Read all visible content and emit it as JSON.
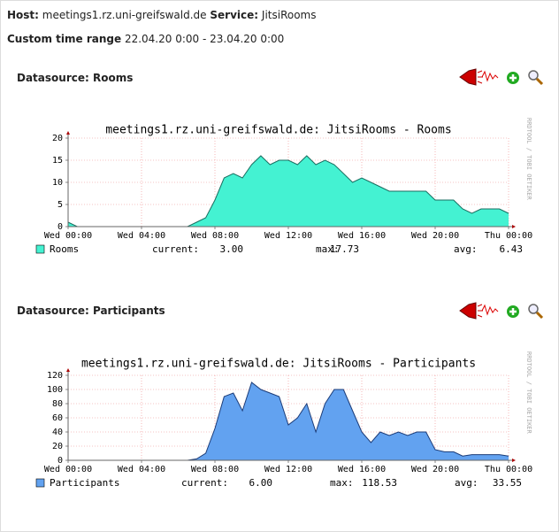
{
  "header": {
    "host_label": "Host:",
    "host": "meetings1.rz.uni-greifswald.de",
    "service_label": "Service:",
    "service": "JitsiRooms",
    "range_label": "Custom time range",
    "range": "22.04.20 0:00 - 23.04.20 0:00"
  },
  "panels": [
    {
      "label": "Datasource:",
      "name": "Rooms"
    },
    {
      "label": "Datasource:",
      "name": "Participants"
    }
  ],
  "chart_data": [
    {
      "type": "area",
      "title": "meetings1.rz.uni-greifswald.de: JitsiRooms - Rooms",
      "watermark": "RRDTOOL / TOBI OETIKER",
      "x": [
        0,
        0.5,
        1,
        1.5,
        2,
        2.5,
        3,
        3.5,
        4,
        4.5,
        5,
        5.5,
        6,
        6.5,
        7,
        7.5,
        8,
        8.5,
        9,
        9.5,
        10,
        10.5,
        11,
        11.5,
        12,
        12.5,
        13,
        13.5,
        14,
        14.5,
        15,
        15.5,
        16,
        16.5,
        17,
        17.5,
        18,
        18.5,
        19,
        19.5,
        20,
        20.5,
        21,
        21.5,
        22,
        22.5,
        23,
        23.5,
        24
      ],
      "series": [
        {
          "name": "Rooms",
          "color": "#44f2d2",
          "line_color": "#1a6e60",
          "values": [
            1,
            0,
            0,
            0,
            0,
            0,
            0,
            0,
            0,
            0,
            0,
            0,
            0,
            0,
            1,
            2,
            6,
            11,
            12,
            11,
            14,
            16,
            14,
            15,
            15,
            14,
            16,
            14,
            15,
            14,
            12,
            10,
            11,
            10,
            9,
            8,
            8,
            8,
            8,
            8,
            6,
            6,
            6,
            4,
            3,
            4,
            4,
            4,
            3
          ],
          "stats": [
            {
              "label": "current:",
              "value": 3,
              "value_label": "3.00"
            },
            {
              "label": "max:",
              "value": 17.73,
              "value_label": "17.73"
            },
            {
              "label": "avg:",
              "value": 6.43,
              "value_label": "6.43"
            }
          ]
        }
      ],
      "xlim": [
        0,
        24
      ],
      "xticks": [
        {
          "value": 0,
          "label": "Wed 00:00"
        },
        {
          "value": 4,
          "label": "Wed 04:00"
        },
        {
          "value": 8,
          "label": "Wed 08:00"
        },
        {
          "value": 12,
          "label": "Wed 12:00"
        },
        {
          "value": 16,
          "label": "Wed 16:00"
        },
        {
          "value": 20,
          "label": "Wed 20:00"
        },
        {
          "value": 24,
          "label": "Thu 00:00"
        }
      ],
      "ylim": [
        0,
        20
      ],
      "yticks": [
        0,
        5,
        10,
        15,
        20
      ],
      "grid": true
    },
    {
      "type": "area",
      "title": "meetings1.rz.uni-greifswald.de: JitsiRooms - Participants",
      "watermark": "RRDTOOL / TOBI OETIKER",
      "x": [
        0,
        0.5,
        1,
        1.5,
        2,
        2.5,
        3,
        3.5,
        4,
        4.5,
        5,
        5.5,
        6,
        6.5,
        7,
        7.5,
        8,
        8.5,
        9,
        9.5,
        10,
        10.5,
        11,
        11.5,
        12,
        12.5,
        13,
        13.5,
        14,
        14.5,
        15,
        15.5,
        16,
        16.5,
        17,
        17.5,
        18,
        18.5,
        19,
        19.5,
        20,
        20.5,
        21,
        21.5,
        22,
        22.5,
        23,
        23.5,
        24
      ],
      "series": [
        {
          "name": "Participants",
          "color": "#62a2f0",
          "line_color": "#1c3c78",
          "values": [
            0,
            0,
            0,
            0,
            0,
            0,
            0,
            0,
            0,
            0,
            0,
            0,
            0,
            0,
            2,
            10,
            45,
            90,
            95,
            70,
            110,
            100,
            95,
            90,
            50,
            60,
            80,
            40,
            80,
            100,
            100,
            70,
            40,
            25,
            40,
            35,
            40,
            35,
            40,
            40,
            15,
            12,
            12,
            6,
            8,
            8,
            8,
            8,
            6
          ],
          "stats": [
            {
              "label": "current:",
              "value": 6,
              "value_label": "6.00"
            },
            {
              "label": "max:",
              "value": 118.53,
              "value_label": "118.53"
            },
            {
              "label": "avg:",
              "value": 33.55,
              "value_label": "33.55"
            }
          ]
        }
      ],
      "xlim": [
        0,
        24
      ],
      "xticks": [
        {
          "value": 0,
          "label": "Wed 00:00"
        },
        {
          "value": 4,
          "label": "Wed 04:00"
        },
        {
          "value": 8,
          "label": "Wed 08:00"
        },
        {
          "value": 12,
          "label": "Wed 12:00"
        },
        {
          "value": 16,
          "label": "Wed 16:00"
        },
        {
          "value": 20,
          "label": "Wed 20:00"
        },
        {
          "value": 24,
          "label": "Thu 00:00"
        }
      ],
      "ylim": [
        0,
        120
      ],
      "yticks": [
        0,
        20,
        40,
        60,
        80,
        100,
        120
      ],
      "grid": true
    }
  ]
}
